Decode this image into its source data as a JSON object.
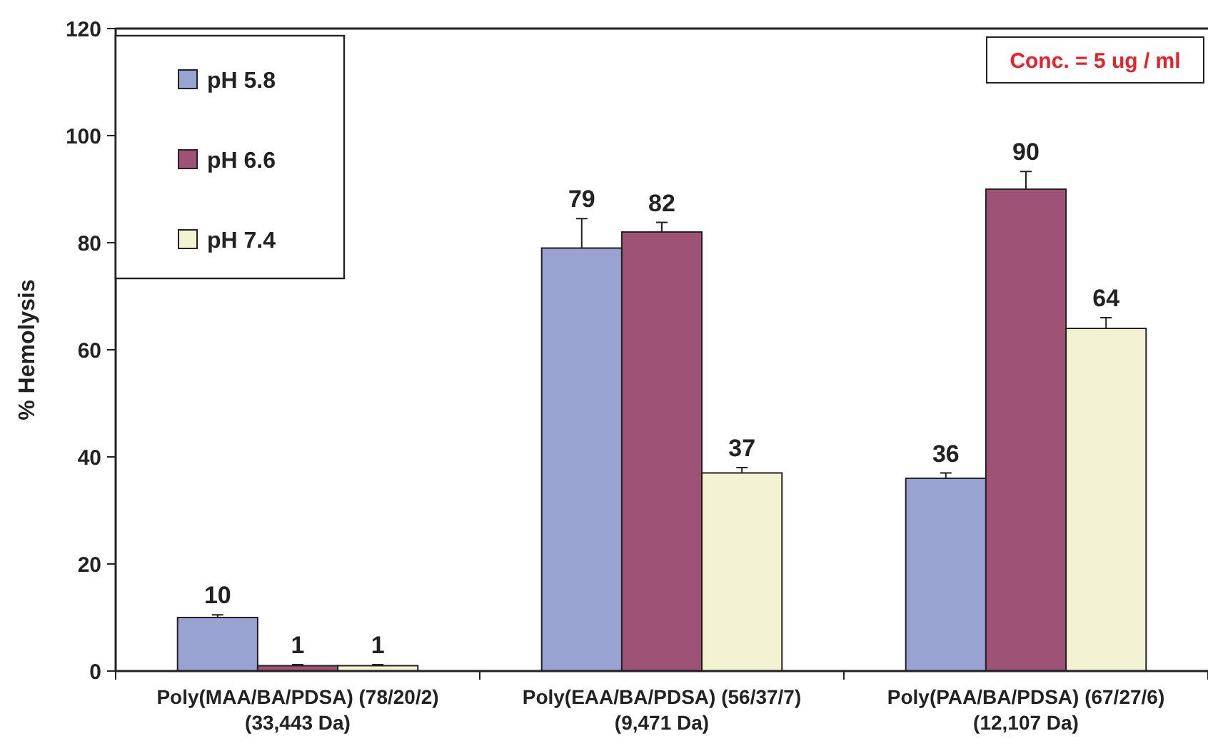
{
  "chart_data": {
    "type": "bar",
    "ylabel": "% Hemolysis",
    "categories": [
      "Poly(MAA/BA/PDSA) (78/20/2)\n(33,443 Da)",
      "Poly(EAA/BA/PDSA) (56/37/7)\n(9,471 Da)",
      "Poly(PAA/BA/PDSA) (67/27/6)\n(12,107 Da)"
    ],
    "series": [
      {
        "name": "pH 5.8",
        "color": "#99a3d1",
        "values": [
          10,
          79,
          36
        ],
        "errors": [
          [
            10,
            10.5
          ],
          [
            79,
            84.5
          ],
          [
            36,
            37
          ]
        ]
      },
      {
        "name": "pH 6.6",
        "color": "#9e5275",
        "values": [
          1,
          82,
          90
        ],
        "errors": [
          [
            1,
            1.2
          ],
          [
            82,
            83.8
          ],
          [
            90,
            93.3
          ]
        ]
      },
      {
        "name": "pH 7.4",
        "color": "#f3f2d2",
        "values": [
          1,
          37,
          64
        ],
        "errors": [
          [
            1,
            1.2
          ],
          [
            37,
            38
          ],
          [
            64,
            66
          ]
        ]
      }
    ],
    "ylim": [
      0,
      120
    ],
    "yticks": [
      0,
      20,
      40,
      60,
      80,
      100,
      120
    ],
    "data_labels": true,
    "legend": "top left",
    "grid": false,
    "annotations": [
      "Conc. = 5 ug / ml"
    ]
  }
}
